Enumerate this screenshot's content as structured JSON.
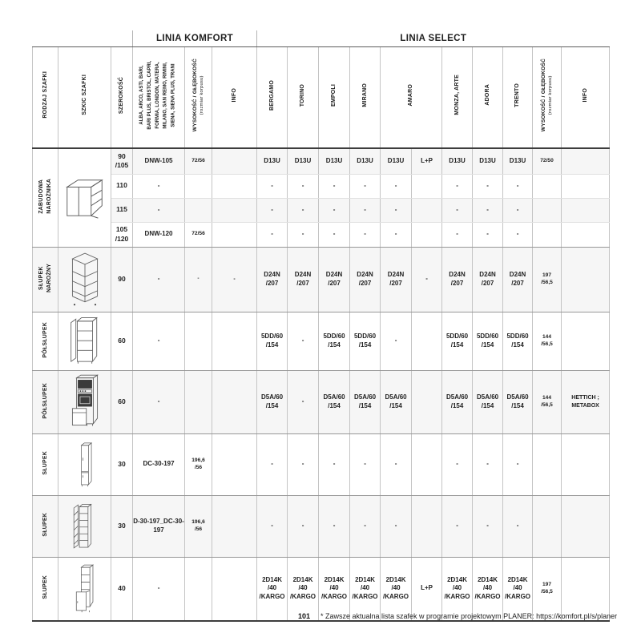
{
  "page": {
    "footer_page_number": "101",
    "footer_note": "* Zawsze aktualna lista szafek w programie projektowym PLANER: https://komfort.pl/s/planer"
  },
  "colors": {
    "row_shade": "#f6f6f6",
    "line_dark": "#3d3d3d",
    "line_light": "#c4c4c4",
    "text": "#1a1a1a"
  },
  "table": {
    "groups": {
      "komfort": "LINIA KOMFORT",
      "select": "LINIA SELECT"
    },
    "headers": {
      "rodzaj": "RODZAJ SZAFKI",
      "szkic": "SZKIC SZAFKI",
      "szerokosc": "SZEROKOŚĆ",
      "komfort_models": "ALBA, ARCO, ASTI, BARI,\nBARI PLUS, BRISTOL, CAPRI,\nFORMIA, LONDON, MATERA,\nMILANO, SAN REMO, RIMINI,\nSIENA, SIENA PLUS, TRANI",
      "wysokosc": "WYSOKOŚĆ / GŁĘBOKOŚĆ",
      "wysokosc_sub": "(rozmiar korpusu)",
      "info": "INFO",
      "select_cols": [
        "BERGAMO",
        "TORINO",
        "EMPOLI",
        "MIRANO",
        "AMARO",
        "MONZA, ARTE",
        "ADORA",
        "TRENTO"
      ]
    },
    "row_groups": [
      {
        "label": "ZABUDOWA\nNAROŻNIKA",
        "sketch": "corner-base",
        "rows": [
          {
            "width": "90\n/105",
            "cells": [
              "DNW-105",
              "72/56",
              "",
              "D13U",
              "D13U",
              "D13U",
              "D13U",
              "D13U",
              "L+P",
              "D13U",
              "D13U",
              "D13U",
              "72/50",
              ""
            ]
          },
          {
            "width": "110",
            "cells": [
              "-",
              "",
              "",
              "-",
              "-",
              "-",
              "-",
              "-",
              "",
              "-",
              "-",
              "-",
              "",
              ""
            ]
          },
          {
            "width": "115",
            "cells": [
              "-",
              "",
              "",
              "-",
              "-",
              "-",
              "-",
              "-",
              "",
              "-",
              "-",
              "-",
              "",
              ""
            ]
          },
          {
            "width": "105\n/120",
            "cells": [
              "DNW-120",
              "72/56",
              "",
              "-",
              "-",
              "-",
              "-",
              "-",
              "",
              "-",
              "-",
              "-",
              "",
              ""
            ]
          }
        ]
      },
      {
        "label": "SŁUPEK\nNAROŻNY",
        "sketch": "corner-tall",
        "rows": [
          {
            "width": "90",
            "cells": [
              "-",
              "-",
              "-",
              "D24N\n/207",
              "D24N\n/207",
              "D24N\n/207",
              "D24N\n/207",
              "D24N\n/207",
              "-",
              "D24N\n/207",
              "D24N\n/207",
              "D24N\n/207",
              "197\n/56,5",
              ""
            ]
          }
        ]
      },
      {
        "label": "PÓŁSŁUPEK",
        "sketch": "half-column",
        "rows": [
          {
            "width": "60",
            "cells": [
              "-",
              "",
              "",
              "5DD/60\n/154",
              "-",
              "5DD/60\n/154",
              "5DD/60\n/154",
              "-",
              "",
              "5DD/60\n/154",
              "5DD/60\n/154",
              "5DD/60\n/154",
              "144\n/56,5",
              ""
            ]
          }
        ]
      },
      {
        "label": "PÓŁSŁUPEK",
        "sketch": "half-column-appliance",
        "rows": [
          {
            "width": "60",
            "cells": [
              "-",
              "",
              "",
              "D5A/60\n/154",
              "-",
              "D5A/60\n/154",
              "D5A/60\n/154",
              "D5A/60\n/154",
              "",
              "D5A/60\n/154",
              "D5A/60\n/154",
              "D5A/60\n/154",
              "144\n/56,5",
              "HETTICH ;\nMETABOX"
            ]
          }
        ]
      },
      {
        "label": "SŁUPEK",
        "sketch": "column-closed",
        "rows": [
          {
            "width": "30",
            "cells": [
              "DC-30-197",
              "196,6\n/56",
              "",
              "-",
              "-",
              "-",
              "-",
              "-",
              "",
              "-",
              "-",
              "-",
              "",
              ""
            ]
          }
        ]
      },
      {
        "label": "SŁUPEK",
        "sketch": "column-open",
        "rows": [
          {
            "width": "30",
            "cells": [
              "D-30-197_DC-30-197",
              "196,6\n/56",
              "",
              "-",
              "-",
              "-",
              "-",
              "-",
              "",
              "-",
              "-",
              "-",
              "",
              ""
            ]
          }
        ]
      },
      {
        "label": "SŁUPEK",
        "sketch": "column-40",
        "rows": [
          {
            "width": "40",
            "cells": [
              "-",
              "",
              "",
              "2D14K\n/40\n/KARGO",
              "2D14K\n/40\n/KARGO",
              "2D14K\n/40\n/KARGO",
              "2D14K\n/40\n/KARGO",
              "2D14K\n/40\n/KARGO",
              "L+P",
              "2D14K\n/40\n/KARGO",
              "2D14K\n/40\n/KARGO",
              "2D14K\n/40\n/KARGO",
              "197\n/56,5",
              ""
            ]
          }
        ]
      }
    ]
  }
}
